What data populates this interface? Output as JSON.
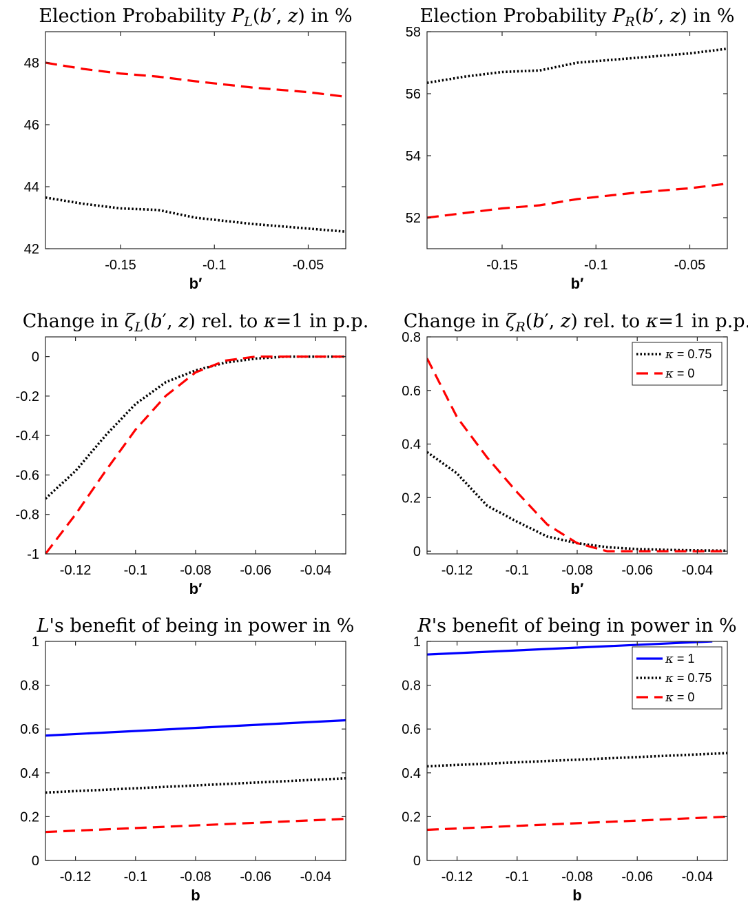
{
  "colors": {
    "kappa_1": "#0000ff",
    "kappa_075": "#000000",
    "kappa_0": "#ff0000"
  },
  "chart_data": [
    {
      "type": "line",
      "title": "Election Probability P_L(b', z) in %",
      "title_parts": [
        "Election Probability ",
        "P",
        "L",
        "(",
        "b",
        "′",
        ", ",
        "z",
        ") in %"
      ],
      "xlabel": "b′",
      "xlim": [
        -0.19,
        -0.03
      ],
      "ylim": [
        42,
        49
      ],
      "xticks": [
        -0.15,
        -0.1,
        -0.05
      ],
      "xtick_labels": [
        "-0.15",
        "-0.1",
        "-0.05"
      ],
      "yticks": [
        42,
        44,
        46,
        48
      ],
      "ytick_labels": [
        "42",
        "44",
        "46",
        "48"
      ],
      "legend": null,
      "series": [
        {
          "key": "kappa_075",
          "style": "dotted",
          "x": [
            -0.19,
            -0.17,
            -0.15,
            -0.13,
            -0.11,
            -0.08,
            -0.05,
            -0.03
          ],
          "y": [
            43.65,
            43.45,
            43.3,
            43.25,
            43.0,
            42.8,
            42.65,
            42.55
          ]
        },
        {
          "key": "kappa_0",
          "style": "dashed",
          "x": [
            -0.19,
            -0.17,
            -0.15,
            -0.13,
            -0.11,
            -0.08,
            -0.05,
            -0.03
          ],
          "y": [
            48.0,
            47.8,
            47.65,
            47.55,
            47.4,
            47.2,
            47.05,
            46.9
          ]
        }
      ]
    },
    {
      "type": "line",
      "title": "Election Probability P_R(b', z) in %",
      "title_parts": [
        "Election Probability ",
        "P",
        "R",
        "(",
        "b",
        "′",
        ", ",
        "z",
        ") in %"
      ],
      "xlabel": "b′",
      "xlim": [
        -0.19,
        -0.03
      ],
      "ylim": [
        51,
        58
      ],
      "xticks": [
        -0.15,
        -0.1,
        -0.05
      ],
      "xtick_labels": [
        "-0.15",
        "-0.1",
        "-0.05"
      ],
      "yticks": [
        52,
        54,
        56,
        58
      ],
      "ytick_labels": [
        "52",
        "54",
        "56",
        "58"
      ],
      "legend": null,
      "series": [
        {
          "key": "kappa_075",
          "style": "dotted",
          "x": [
            -0.19,
            -0.17,
            -0.15,
            -0.13,
            -0.11,
            -0.08,
            -0.05,
            -0.03
          ],
          "y": [
            56.35,
            56.55,
            56.7,
            56.75,
            57.0,
            57.15,
            57.3,
            57.45
          ]
        },
        {
          "key": "kappa_0",
          "style": "dashed",
          "x": [
            -0.19,
            -0.17,
            -0.15,
            -0.13,
            -0.11,
            -0.08,
            -0.05,
            -0.03
          ],
          "y": [
            52.0,
            52.15,
            52.3,
            52.4,
            52.6,
            52.8,
            52.95,
            53.1
          ]
        }
      ]
    },
    {
      "type": "line",
      "title": "Change in ζ_L(b', z) rel. to κ=1 in p.p.",
      "title_parts": [
        "Change in ",
        "ζ",
        "L",
        "(",
        "b",
        "′",
        ", ",
        "z",
        ") rel. to ",
        "κ",
        "=1 in p.p."
      ],
      "xlabel": "b′",
      "xlim": [
        -0.13,
        -0.03
      ],
      "ylim": [
        -1,
        0.1
      ],
      "xticks": [
        -0.12,
        -0.1,
        -0.08,
        -0.06,
        -0.04
      ],
      "xtick_labels": [
        "-0.12",
        "-0.1",
        "-0.08",
        "-0.06",
        "-0.04"
      ],
      "yticks": [
        -1,
        -0.8,
        -0.6,
        -0.4,
        -0.2,
        0
      ],
      "ytick_labels": [
        "-1",
        "-0.8",
        "-0.6",
        "-0.4",
        "-0.2",
        "0"
      ],
      "legend": null,
      "series": [
        {
          "key": "kappa_075",
          "style": "dotted",
          "x": [
            -0.13,
            -0.12,
            -0.11,
            -0.1,
            -0.09,
            -0.08,
            -0.07,
            -0.06,
            -0.05,
            -0.04,
            -0.03
          ],
          "y": [
            -0.72,
            -0.58,
            -0.4,
            -0.24,
            -0.13,
            -0.07,
            -0.03,
            -0.01,
            0,
            0,
            0
          ]
        },
        {
          "key": "kappa_0",
          "style": "dashed",
          "x": [
            -0.13,
            -0.12,
            -0.11,
            -0.1,
            -0.09,
            -0.08,
            -0.07,
            -0.06,
            -0.05,
            -0.04,
            -0.03
          ],
          "y": [
            -1.0,
            -0.8,
            -0.58,
            -0.37,
            -0.2,
            -0.08,
            -0.02,
            0,
            0,
            0,
            0
          ]
        }
      ]
    },
    {
      "type": "line",
      "title": "Change in ζ_R(b', z) rel. to κ=1 in p.p.",
      "title_parts": [
        "Change in ",
        "ζ",
        "R",
        "(",
        "b",
        "′",
        ", ",
        "z",
        ") rel. to ",
        "κ",
        "=1 in p.p."
      ],
      "xlabel": "b′",
      "xlim": [
        -0.13,
        -0.03
      ],
      "ylim": [
        -0.01,
        0.8
      ],
      "xticks": [
        -0.12,
        -0.1,
        -0.08,
        -0.06,
        -0.04
      ],
      "xtick_labels": [
        "-0.12",
        "-0.1",
        "-0.08",
        "-0.06",
        "-0.04"
      ],
      "yticks": [
        0,
        0.2,
        0.4,
        0.6,
        0.8
      ],
      "ytick_labels": [
        "0",
        "0.2",
        "0.4",
        "0.6",
        "0.8"
      ],
      "legend": {
        "position": "top-right",
        "entries": [
          {
            "key": "kappa_075",
            "style": "dotted",
            "symbol": "κ",
            "label": " = 0.75"
          },
          {
            "key": "kappa_0",
            "style": "dashed",
            "symbol": "κ",
            "label": " = 0"
          }
        ]
      },
      "series": [
        {
          "key": "kappa_075",
          "style": "dotted",
          "x": [
            -0.13,
            -0.12,
            -0.11,
            -0.1,
            -0.09,
            -0.08,
            -0.07,
            -0.06,
            -0.05,
            -0.04,
            -0.03
          ],
          "y": [
            0.37,
            0.29,
            0.17,
            0.11,
            0.055,
            0.03,
            0.015,
            0.008,
            0.005,
            0.003,
            0.002
          ]
        },
        {
          "key": "kappa_0",
          "style": "dashed",
          "x": [
            -0.13,
            -0.12,
            -0.11,
            -0.1,
            -0.09,
            -0.08,
            -0.07,
            -0.06,
            -0.05,
            -0.04,
            -0.03
          ],
          "y": [
            0.72,
            0.5,
            0.35,
            0.22,
            0.1,
            0.03,
            0.0,
            0.0,
            0.0,
            0.0,
            0.0
          ]
        }
      ]
    },
    {
      "type": "line",
      "title": "L's benefit of being in power in %",
      "title_parts": [
        "L",
        "'s benefit of being in power in %"
      ],
      "xlabel": "b",
      "xlim": [
        -0.13,
        -0.03
      ],
      "ylim": [
        0,
        1
      ],
      "xticks": [
        -0.12,
        -0.1,
        -0.08,
        -0.06,
        -0.04
      ],
      "xtick_labels": [
        "-0.12",
        "-0.1",
        "-0.08",
        "-0.06",
        "-0.04"
      ],
      "yticks": [
        0,
        0.2,
        0.4,
        0.6,
        0.8,
        1
      ],
      "ytick_labels": [
        "0",
        "0.2",
        "0.4",
        "0.6",
        "0.8",
        "1"
      ],
      "legend": null,
      "series": [
        {
          "key": "kappa_1",
          "style": "solid",
          "x": [
            -0.13,
            -0.03
          ],
          "y": [
            0.57,
            0.64
          ]
        },
        {
          "key": "kappa_075",
          "style": "dotted",
          "x": [
            -0.13,
            -0.03
          ],
          "y": [
            0.31,
            0.375
          ]
        },
        {
          "key": "kappa_0",
          "style": "dashed",
          "x": [
            -0.13,
            -0.03
          ],
          "y": [
            0.13,
            0.19
          ]
        }
      ]
    },
    {
      "type": "line",
      "title": "R's benefit of being in power in %",
      "title_parts": [
        "R",
        "'s benefit of being in power in %"
      ],
      "xlabel": "b",
      "xlim": [
        -0.13,
        -0.03
      ],
      "ylim": [
        0,
        1
      ],
      "xticks": [
        -0.12,
        -0.1,
        -0.08,
        -0.06,
        -0.04
      ],
      "xtick_labels": [
        "-0.12",
        "-0.1",
        "-0.08",
        "-0.06",
        "-0.04"
      ],
      "yticks": [
        0,
        0.2,
        0.4,
        0.6,
        0.8,
        1
      ],
      "ytick_labels": [
        "0",
        "0.2",
        "0.4",
        "0.6",
        "0.8",
        "1"
      ],
      "legend": {
        "position": "top-right",
        "entries": [
          {
            "key": "kappa_1",
            "style": "solid",
            "symbol": "κ",
            "label": " = 1"
          },
          {
            "key": "kappa_075",
            "style": "dotted",
            "symbol": "κ",
            "label": " = 0.75"
          },
          {
            "key": "kappa_0",
            "style": "dashed",
            "symbol": "κ",
            "label": " = 0"
          }
        ]
      },
      "series": [
        {
          "key": "kappa_1",
          "style": "solid",
          "x": [
            -0.13,
            -0.035
          ],
          "y": [
            0.94,
            1.0
          ]
        },
        {
          "key": "kappa_075",
          "style": "dotted",
          "x": [
            -0.13,
            -0.03
          ],
          "y": [
            0.43,
            0.49
          ]
        },
        {
          "key": "kappa_0",
          "style": "dashed",
          "x": [
            -0.13,
            -0.03
          ],
          "y": [
            0.14,
            0.2
          ]
        }
      ]
    }
  ]
}
